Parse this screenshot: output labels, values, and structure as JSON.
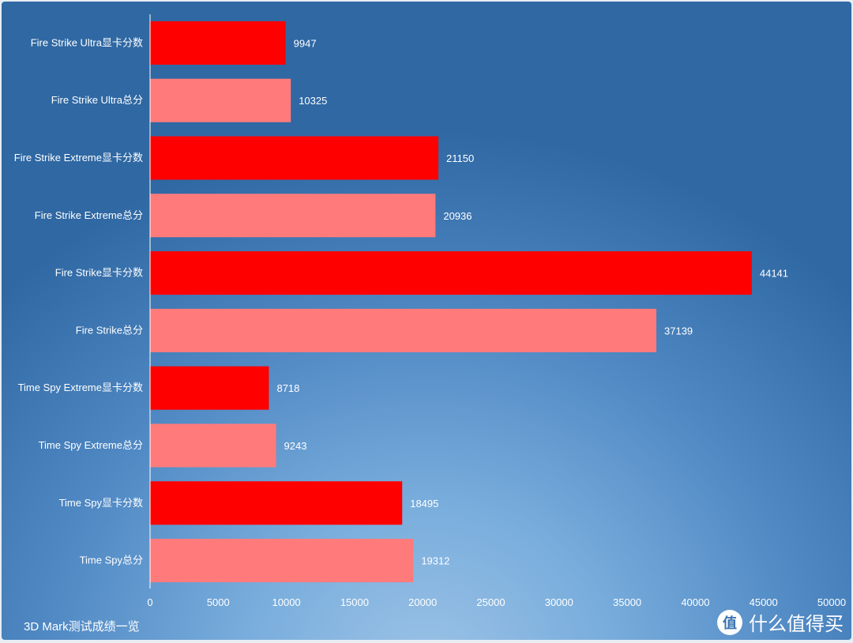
{
  "chart_data": {
    "type": "bar",
    "orientation": "horizontal",
    "title": "3D Mark测试成绩一览",
    "categories": [
      "Fire Strike Ultra显卡分数",
      "Fire Strike Ultra总分",
      "Fire Strike Extreme显卡分数",
      "Fire Strike Extreme总分",
      "Fire Strike显卡分数",
      "Fire Strike总分",
      "Time Spy  Extreme显卡分数",
      "Time Spy  Extreme总分",
      "Time Spy显卡分数",
      "Time Spy总分"
    ],
    "values": [
      9947,
      10325,
      21150,
      20936,
      44141,
      37139,
      8718,
      9243,
      18495,
      19312
    ],
    "bar_colors": [
      "#ff0000",
      "#ff7b7b",
      "#ff0000",
      "#ff7b7b",
      "#ff0000",
      "#ff7b7b",
      "#ff0000",
      "#ff7b7b",
      "#ff0000",
      "#ff7b7b"
    ],
    "xlim": [
      0,
      50000
    ],
    "xticks": [
      0,
      5000,
      10000,
      15000,
      20000,
      25000,
      30000,
      35000,
      40000,
      45000,
      50000
    ],
    "xlabel": "",
    "ylabel": "",
    "grid": false,
    "legend": "none"
  },
  "watermark": {
    "text": "什么值得买",
    "icon_char": "值"
  }
}
